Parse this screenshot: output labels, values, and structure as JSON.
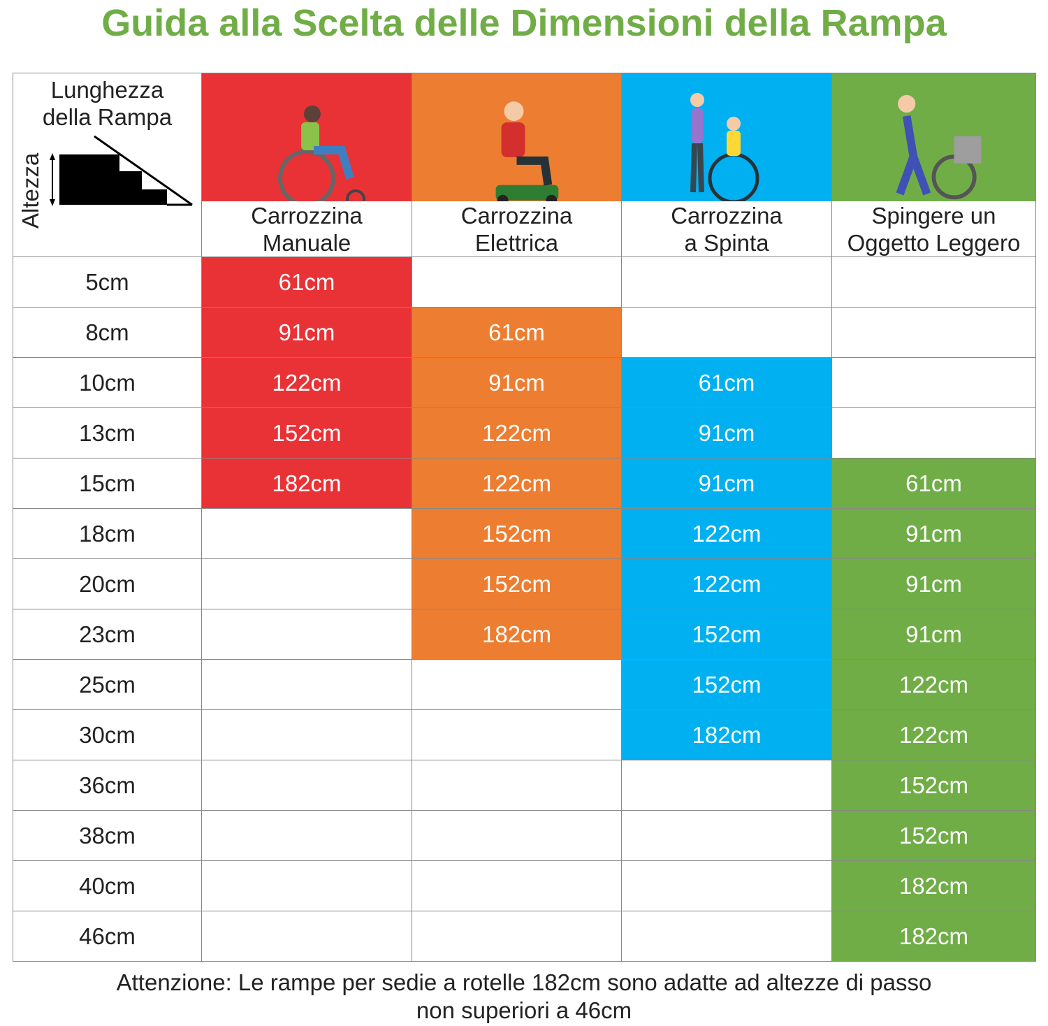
{
  "title": "Guida alla Scelta delle Dimensioni della Rampa",
  "title_color": "#70ad47",
  "corner": {
    "top_label": "Lunghezza\ndella Rampa",
    "side_label": "Altezza",
    "icon": "stairs-ramp-icon"
  },
  "columns": [
    {
      "label": "Carrozzina\nManuale",
      "color": "#e93236",
      "icon": "manual-wheelchair-user-icon"
    },
    {
      "label": "Carrozzina\nElettrica",
      "color": "#ed7d31",
      "icon": "electric-wheelchair-user-icon"
    },
    {
      "label": "Carrozzina\na Spinta",
      "color": "#00b0f0",
      "icon": "pushed-wheelchair-icon"
    },
    {
      "label": "Spingere un\nOggetto Leggero",
      "color": "#70ad47",
      "icon": "pushing-light-object-icon"
    }
  ],
  "rows": [
    {
      "height": "5cm",
      "values": [
        "61cm",
        null,
        null,
        null
      ]
    },
    {
      "height": "8cm",
      "values": [
        "91cm",
        "61cm",
        null,
        null
      ]
    },
    {
      "height": "10cm",
      "values": [
        "122cm",
        "91cm",
        "61cm",
        null
      ]
    },
    {
      "height": "13cm",
      "values": [
        "152cm",
        "122cm",
        "91cm",
        null
      ]
    },
    {
      "height": "15cm",
      "values": [
        "182cm",
        "122cm",
        "91cm",
        "61cm"
      ]
    },
    {
      "height": "18cm",
      "values": [
        null,
        "152cm",
        "122cm",
        "91cm"
      ]
    },
    {
      "height": "20cm",
      "values": [
        null,
        "152cm",
        "122cm",
        "91cm"
      ]
    },
    {
      "height": "23cm",
      "values": [
        null,
        "182cm",
        "152cm",
        "91cm"
      ]
    },
    {
      "height": "25cm",
      "values": [
        null,
        null,
        "152cm",
        "122cm"
      ]
    },
    {
      "height": "30cm",
      "values": [
        null,
        null,
        "182cm",
        "122cm"
      ]
    },
    {
      "height": "36cm",
      "values": [
        null,
        null,
        null,
        "152cm"
      ]
    },
    {
      "height": "38cm",
      "values": [
        null,
        null,
        null,
        "152cm"
      ]
    },
    {
      "height": "40cm",
      "values": [
        null,
        null,
        null,
        "182cm"
      ]
    },
    {
      "height": "46cm",
      "values": [
        null,
        null,
        null,
        "182cm"
      ]
    }
  ],
  "note": "Attenzione: Le rampe per sedie a rotelle 182cm sono adatte ad altezze di passo\nnon superiori a 46cm"
}
